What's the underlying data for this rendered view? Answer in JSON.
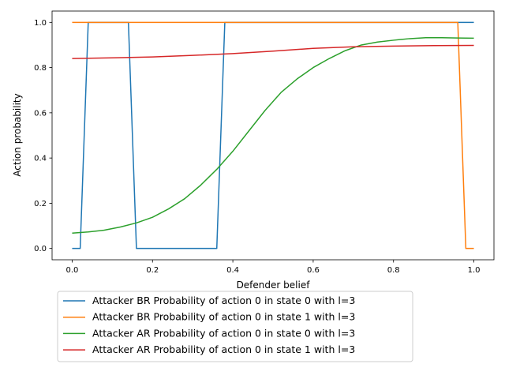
{
  "chart_data": {
    "type": "line",
    "xlabel": "Defender belief",
    "ylabel": "Action probability",
    "xlim": [
      -0.05,
      1.05
    ],
    "ylim": [
      -0.05,
      1.05
    ],
    "xticks": [
      "0.0",
      "0.2",
      "0.4",
      "0.6",
      "0.8",
      "1.0"
    ],
    "yticks": [
      "0.0",
      "0.2",
      "0.4",
      "0.6",
      "0.8",
      "1.0"
    ],
    "grid": false,
    "legend_position": "below plot, left",
    "series": [
      {
        "name": "Attacker BR Probability of action 0 in state 0 with l=3",
        "color": "#1f77b4",
        "x": [
          0.0,
          0.02,
          0.04,
          0.14,
          0.16,
          0.36,
          0.38,
          1.0
        ],
        "y": [
          0.0,
          0.0,
          1.0,
          1.0,
          0.0,
          0.0,
          1.0,
          1.0
        ]
      },
      {
        "name": "Attacker BR Probability of action 0 in state 1 with l=3",
        "color": "#ff7f0e",
        "x": [
          0.0,
          0.96,
          0.98,
          1.0
        ],
        "y": [
          1.0,
          1.0,
          0.0,
          0.0
        ]
      },
      {
        "name": "Attacker AR Probability of action 0 in state 0 with l=3",
        "color": "#2ca02c",
        "x": [
          0.0,
          0.04,
          0.08,
          0.12,
          0.16,
          0.2,
          0.24,
          0.28,
          0.32,
          0.36,
          0.4,
          0.44,
          0.48,
          0.52,
          0.56,
          0.6,
          0.64,
          0.68,
          0.72,
          0.76,
          0.8,
          0.84,
          0.88,
          0.92,
          0.96,
          1.0
        ],
        "y": [
          0.068,
          0.073,
          0.081,
          0.095,
          0.113,
          0.138,
          0.175,
          0.22,
          0.28,
          0.35,
          0.43,
          0.52,
          0.61,
          0.69,
          0.75,
          0.8,
          0.84,
          0.875,
          0.9,
          0.913,
          0.921,
          0.928,
          0.932,
          0.932,
          0.931,
          0.93
        ]
      },
      {
        "name": "Attacker AR Probability of action 0 in state 1 with l=3",
        "color": "#d62728",
        "x": [
          0.0,
          0.1,
          0.2,
          0.3,
          0.4,
          0.5,
          0.6,
          0.7,
          0.8,
          0.9,
          1.0
        ],
        "y": [
          0.84,
          0.843,
          0.847,
          0.854,
          0.862,
          0.873,
          0.885,
          0.892,
          0.895,
          0.897,
          0.898
        ]
      }
    ]
  }
}
